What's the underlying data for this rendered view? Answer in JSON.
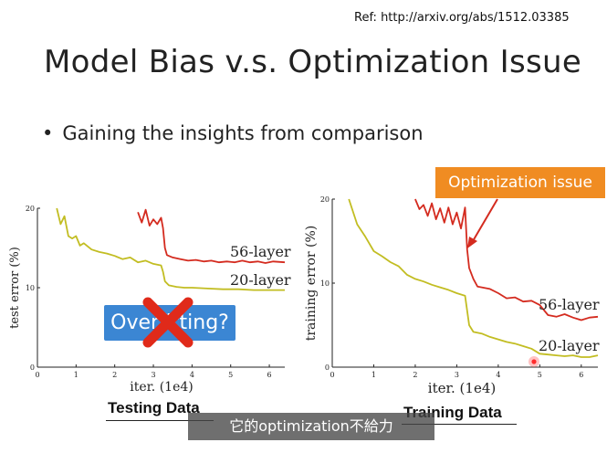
{
  "slide": {
    "ref": "Ref: http://arxiv.org/abs/1512.03385",
    "title": "Model Bias v.s. Optimization Issue",
    "bullet": "Gaining the insights from comparison",
    "callout_optimization": "Optimization issue",
    "callout_overfitting": "Overfitting?",
    "subtitle": "它的optimization不給力",
    "colors": {
      "layer56": "#d42b1f",
      "layer20": "#c2bd22",
      "callout_orange": "#f08c22",
      "callout_blue": "#3b86d3",
      "cross_red": "#e02a1a"
    }
  },
  "chart_data": [
    {
      "type": "line",
      "caption": "Testing Data",
      "xlabel": "iter. (1e4)",
      "ylabel": "test error (%)",
      "xlim": [
        0,
        6.4
      ],
      "ylim": [
        0,
        20
      ],
      "xticks": [
        0,
        1,
        2,
        3,
        4,
        5,
        6
      ],
      "yticks": [
        0,
        10,
        20
      ],
      "series": [
        {
          "name": "56-layer",
          "x": [
            2.6,
            2.7,
            2.8,
            2.9,
            3.0,
            3.1,
            3.2,
            3.25,
            3.3,
            3.35,
            3.5,
            3.7,
            3.9,
            4.1,
            4.3,
            4.5,
            4.7,
            4.9,
            5.1,
            5.3,
            5.5,
            5.7,
            5.9,
            6.1,
            6.4
          ],
          "y": [
            19.5,
            18.2,
            19.8,
            17.8,
            18.6,
            18.0,
            18.8,
            17.5,
            15.0,
            14.1,
            13.8,
            13.6,
            13.4,
            13.5,
            13.3,
            13.4,
            13.2,
            13.3,
            13.2,
            13.4,
            13.2,
            13.3,
            13.1,
            13.3,
            13.2
          ]
        },
        {
          "name": "20-layer",
          "x": [
            0.5,
            0.6,
            0.7,
            0.8,
            0.9,
            1.0,
            1.1,
            1.2,
            1.4,
            1.6,
            1.8,
            2.0,
            2.2,
            2.4,
            2.6,
            2.8,
            3.0,
            3.2,
            3.25,
            3.3,
            3.4,
            3.6,
            3.8,
            4.0,
            4.4,
            4.8,
            5.2,
            5.6,
            6.0,
            6.4
          ],
          "y": [
            20.0,
            18.0,
            19.0,
            16.5,
            16.2,
            16.5,
            15.3,
            15.6,
            14.8,
            14.5,
            14.3,
            14.0,
            13.6,
            13.8,
            13.2,
            13.4,
            13.0,
            12.8,
            12.0,
            10.8,
            10.3,
            10.1,
            10.0,
            10.0,
            9.9,
            9.8,
            9.8,
            9.7,
            9.7,
            9.7
          ]
        }
      ]
    },
    {
      "type": "line",
      "caption": "Training Data",
      "xlabel": "iter. (1e4)",
      "ylabel": "training error (%)",
      "xlim": [
        0,
        6.4
      ],
      "ylim": [
        0,
        20
      ],
      "xticks": [
        0,
        1,
        2,
        3,
        4,
        5,
        6
      ],
      "yticks": [
        0,
        10,
        20
      ],
      "series": [
        {
          "name": "56-layer",
          "x": [
            2.0,
            2.1,
            2.2,
            2.3,
            2.4,
            2.5,
            2.6,
            2.7,
            2.8,
            2.9,
            3.0,
            3.1,
            3.2,
            3.25,
            3.3,
            3.4,
            3.5,
            3.6,
            3.8,
            4.0,
            4.2,
            4.4,
            4.6,
            4.8,
            5.0,
            5.2,
            5.4,
            5.6,
            5.8,
            6.0,
            6.2,
            6.4
          ],
          "y": [
            20.0,
            18.8,
            19.3,
            18.0,
            19.5,
            17.6,
            18.9,
            17.2,
            19.0,
            17.0,
            18.4,
            16.5,
            19.0,
            14.0,
            11.8,
            10.5,
            9.6,
            9.5,
            9.3,
            8.8,
            8.2,
            8.3,
            7.8,
            7.9,
            7.4,
            6.2,
            6.0,
            6.3,
            5.9,
            5.6,
            5.9,
            6.0
          ]
        },
        {
          "name": "20-layer",
          "x": [
            0.4,
            0.6,
            0.8,
            1.0,
            1.2,
            1.4,
            1.6,
            1.8,
            2.0,
            2.2,
            2.4,
            2.6,
            2.8,
            3.0,
            3.2,
            3.3,
            3.4,
            3.6,
            3.8,
            4.0,
            4.2,
            4.4,
            4.6,
            4.8,
            5.0,
            5.2,
            5.4,
            5.6,
            5.8,
            6.0,
            6.2,
            6.4
          ],
          "y": [
            20.0,
            17.0,
            15.5,
            13.8,
            13.2,
            12.5,
            12.0,
            11.0,
            10.5,
            10.2,
            9.8,
            9.5,
            9.2,
            8.8,
            8.5,
            5.0,
            4.2,
            4.0,
            3.6,
            3.3,
            3.0,
            2.8,
            2.5,
            2.2,
            1.6,
            1.5,
            1.4,
            1.3,
            1.4,
            1.2,
            1.2,
            1.4
          ]
        }
      ]
    }
  ]
}
